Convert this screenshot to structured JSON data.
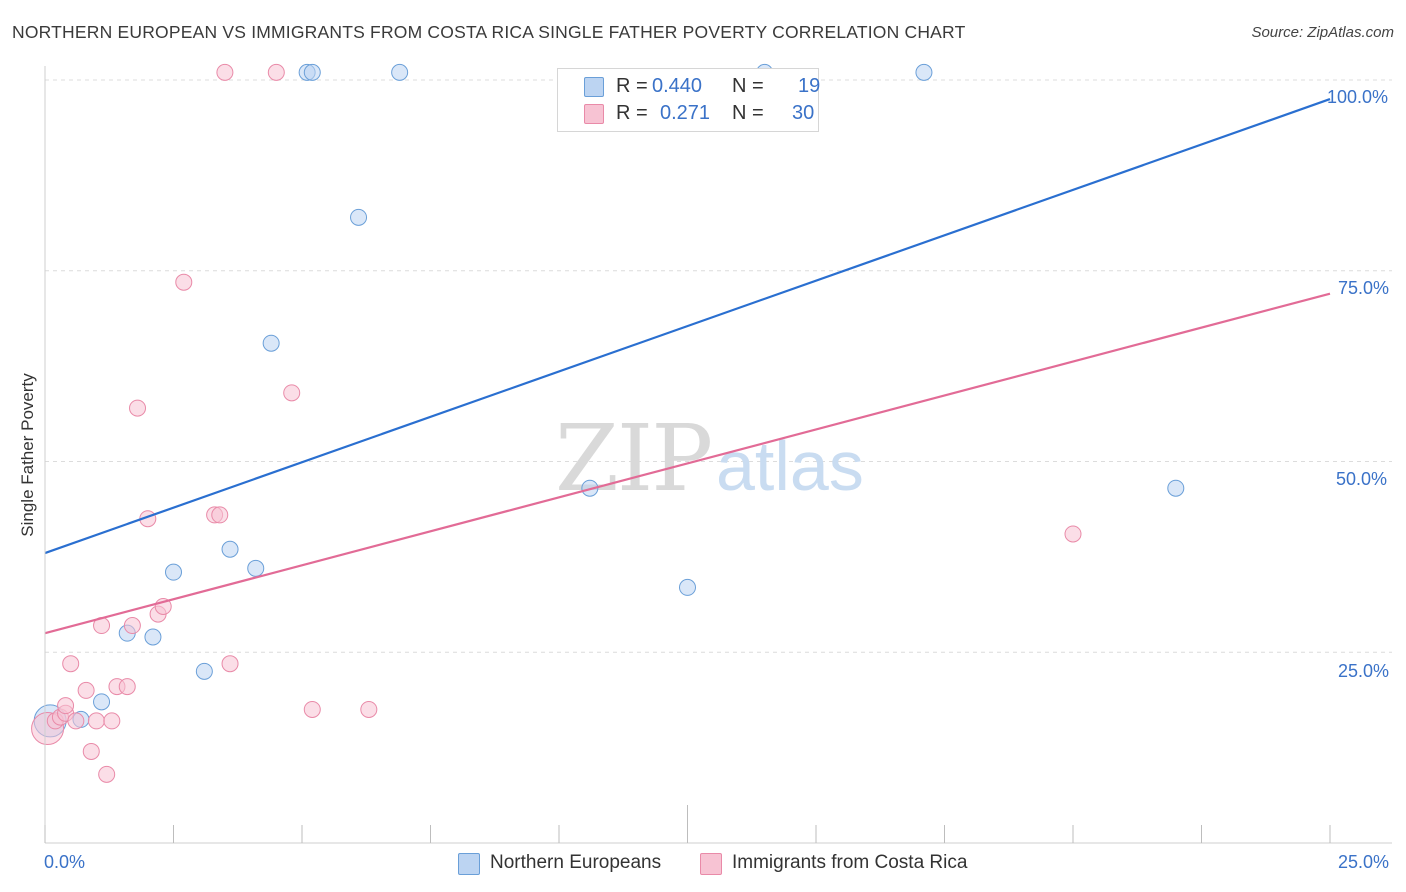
{
  "chart_data": {
    "type": "scatter",
    "title": "NORTHERN EUROPEAN VS IMMIGRANTS FROM COSTA RICA SINGLE FATHER POVERTY CORRELATION CHART",
    "source": "Source: ZipAtlas.com",
    "xlabel": "",
    "ylabel": "Single Father Poverty",
    "xlim": [
      0,
      25
    ],
    "ylim": [
      0,
      100
    ],
    "x_tick_labels": [
      "0.0%",
      "25.0%"
    ],
    "y_ticks": [
      {
        "value": 100,
        "label": "100.0%"
      },
      {
        "value": 75,
        "label": "75.0%"
      },
      {
        "value": 50,
        "label": "50.0%"
      },
      {
        "value": 25,
        "label": "25.0%"
      }
    ],
    "watermark": "ZIPatlas",
    "series": [
      {
        "name": "Northern Europeans",
        "color": "#6a9fd8",
        "fill": "#bcd4f2",
        "line_color": "#2a6fd0",
        "R": "0.440",
        "N": "19",
        "trend": {
          "x0": 0.0,
          "y0": 38.0,
          "x1": 25.0,
          "y1": 97.5
        },
        "points": [
          {
            "x": 0.1,
            "y": 16.0,
            "big": true
          },
          {
            "x": 0.7,
            "y": 16.2
          },
          {
            "x": 1.1,
            "y": 18.5
          },
          {
            "x": 1.6,
            "y": 27.5
          },
          {
            "x": 2.1,
            "y": 27.0
          },
          {
            "x": 2.5,
            "y": 35.5
          },
          {
            "x": 3.1,
            "y": 22.5
          },
          {
            "x": 3.6,
            "y": 38.5
          },
          {
            "x": 4.1,
            "y": 36.0
          },
          {
            "x": 4.4,
            "y": 65.5
          },
          {
            "x": 5.1,
            "y": 101.0
          },
          {
            "x": 5.2,
            "y": 101.0
          },
          {
            "x": 6.1,
            "y": 82.0
          },
          {
            "x": 6.9,
            "y": 101.0
          },
          {
            "x": 10.6,
            "y": 46.5
          },
          {
            "x": 12.5,
            "y": 33.5
          },
          {
            "x": 14.0,
            "y": 101.0
          },
          {
            "x": 17.1,
            "y": 101.0
          },
          {
            "x": 22.0,
            "y": 46.5
          }
        ]
      },
      {
        "name": "Immigrants from Costa Rica",
        "color": "#e98aa8",
        "fill": "#f7c3d3",
        "line_color": "#e26b96",
        "R": "0.271",
        "N": "30",
        "trend": {
          "x0": 0.0,
          "y0": 27.5,
          "x1": 25.0,
          "y1": 72.0
        },
        "points": [
          {
            "x": 0.05,
            "y": 15.0,
            "big": true
          },
          {
            "x": 0.2,
            "y": 16.0
          },
          {
            "x": 0.3,
            "y": 16.5
          },
          {
            "x": 0.4,
            "y": 17.0
          },
          {
            "x": 0.4,
            "y": 18.0
          },
          {
            "x": 0.5,
            "y": 23.5
          },
          {
            "x": 0.6,
            "y": 16.0
          },
          {
            "x": 0.8,
            "y": 20.0
          },
          {
            "x": 0.9,
            "y": 12.0
          },
          {
            "x": 1.0,
            "y": 16.0
          },
          {
            "x": 1.1,
            "y": 28.5
          },
          {
            "x": 1.2,
            "y": 9.0
          },
          {
            "x": 1.3,
            "y": 16.0
          },
          {
            "x": 1.4,
            "y": 20.5
          },
          {
            "x": 1.6,
            "y": 20.5
          },
          {
            "x": 1.7,
            "y": 28.5
          },
          {
            "x": 1.8,
            "y": 57.0
          },
          {
            "x": 2.0,
            "y": 42.5
          },
          {
            "x": 2.2,
            "y": 30.0
          },
          {
            "x": 2.3,
            "y": 31.0
          },
          {
            "x": 2.7,
            "y": 73.5
          },
          {
            "x": 3.3,
            "y": 43.0
          },
          {
            "x": 3.4,
            "y": 43.0
          },
          {
            "x": 3.5,
            "y": 101.0
          },
          {
            "x": 3.6,
            "y": 23.5
          },
          {
            "x": 4.5,
            "y": 101.0
          },
          {
            "x": 4.8,
            "y": 59.0
          },
          {
            "x": 5.2,
            "y": 17.5
          },
          {
            "x": 6.3,
            "y": 17.5
          },
          {
            "x": 20.0,
            "y": 40.5
          }
        ]
      }
    ]
  },
  "legend": {
    "r_label": "R =",
    "n_label": "N ="
  }
}
